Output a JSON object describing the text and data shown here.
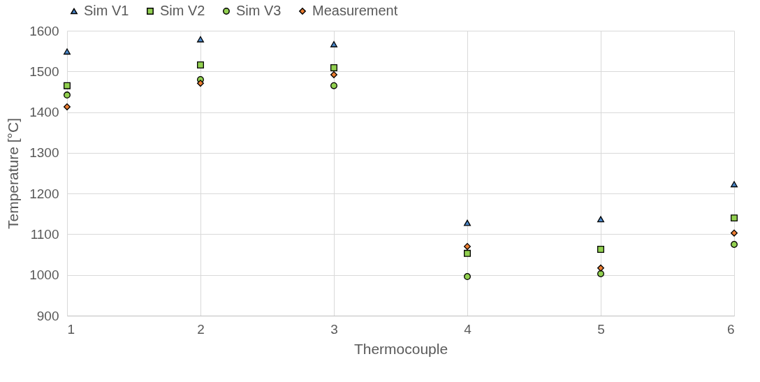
{
  "chart_data": {
    "type": "scatter",
    "xlabel": "Thermocouple",
    "ylabel": "Temperature [°C]",
    "x": [
      1,
      2,
      3,
      4,
      5,
      6
    ],
    "xlim": [
      1,
      6
    ],
    "xticks": [
      1,
      2,
      3,
      4,
      5,
      6
    ],
    "ylim": [
      900,
      1600
    ],
    "yticks": [
      900,
      1000,
      1100,
      1200,
      1300,
      1400,
      1500,
      1600
    ],
    "grid": true,
    "legend": "top",
    "series": [
      {
        "name": "Sim V1",
        "color": "#4a86c8",
        "marker": "triangle",
        "values": [
          1549,
          1579,
          1567,
          1128,
          1137,
          1223
        ]
      },
      {
        "name": "Sim V2",
        "color": "#92d050",
        "marker": "square",
        "values": [
          1465,
          1516,
          1509,
          1053,
          1063,
          1140
        ]
      },
      {
        "name": "Sim V3",
        "color": "#92d050",
        "marker": "circle",
        "values": [
          1442,
          1480,
          1465,
          996,
          1003,
          1075
        ]
      },
      {
        "name": "Measurement",
        "color": "#ed7d31",
        "marker": "diamond",
        "values": [
          1413,
          1471,
          1492,
          1070,
          1017,
          1103
        ]
      }
    ]
  }
}
